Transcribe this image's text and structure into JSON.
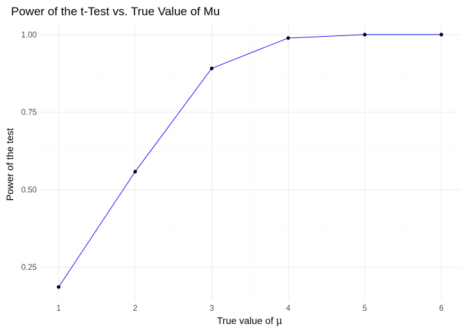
{
  "chart_data": {
    "type": "line",
    "title": "Power of the t-Test vs. True Value of Mu",
    "xlabel_prefix": "True value of ",
    "xlabel_symbol": "μ",
    "ylabel": "Power of the test",
    "x": [
      1,
      2,
      3,
      4,
      5,
      6
    ],
    "series": [
      {
        "values": [
          0.186,
          0.558,
          0.891,
          0.989,
          1.0,
          1.0
        ]
      }
    ],
    "xlim": [
      0.75,
      6.25
    ],
    "ylim": [
      0.145,
      1.04
    ],
    "x_ticks": [
      1,
      2,
      3,
      4,
      5,
      6
    ],
    "y_ticks": [
      0.25,
      0.5,
      0.75,
      1.0
    ],
    "x_tick_labels": [
      "1",
      "2",
      "3",
      "4",
      "5",
      "6"
    ],
    "y_tick_labels": [
      "0.25",
      "0.50",
      "0.75",
      "1.00"
    ],
    "grid": true,
    "legend": "none",
    "line_color": "#0000ff",
    "point_color": "#000000"
  }
}
